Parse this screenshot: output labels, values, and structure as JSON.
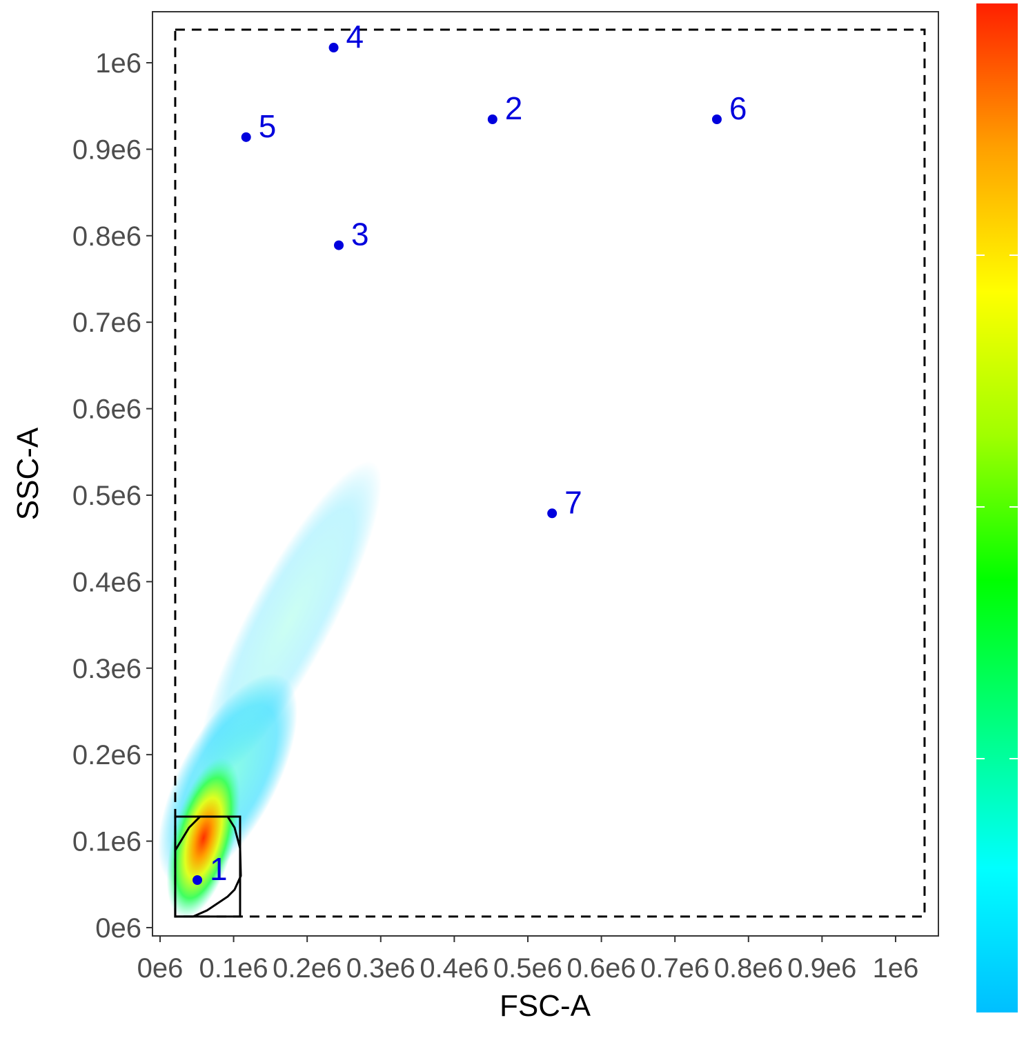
{
  "chart_data": {
    "type": "scatter",
    "x_label": "FSC-A",
    "y_label": "SSC-A",
    "xlim": [
      -10300,
      1058200
    ],
    "ylim": [
      -9600,
      1059000
    ],
    "xticks": [
      {
        "value": 0,
        "label": "0e6"
      },
      {
        "value": 100000,
        "label": "0.1e6"
      },
      {
        "value": 200000,
        "label": "0.2e6"
      },
      {
        "value": 300000,
        "label": "0.3e6"
      },
      {
        "value": 400000,
        "label": "0.4e6"
      },
      {
        "value": 500000,
        "label": "0.5e6"
      },
      {
        "value": 600000,
        "label": "0.6e6"
      },
      {
        "value": 700000,
        "label": "0.7e6"
      },
      {
        "value": 800000,
        "label": "0.8e6"
      },
      {
        "value": 900000,
        "label": "0.9e6"
      },
      {
        "value": 1000000,
        "label": "1e6"
      }
    ],
    "yticks": [
      {
        "value": 0,
        "label": "0e6"
      },
      {
        "value": 100000,
        "label": "0.1e6"
      },
      {
        "value": 200000,
        "label": "0.2e6"
      },
      {
        "value": 300000,
        "label": "0.3e6"
      },
      {
        "value": 400000,
        "label": "0.4e6"
      },
      {
        "value": 500000,
        "label": "0.5e6"
      },
      {
        "value": 600000,
        "label": "0.6e6"
      },
      {
        "value": 700000,
        "label": "0.7e6"
      },
      {
        "value": 800000,
        "label": "0.8e6"
      },
      {
        "value": 900000,
        "label": "0.9e6"
      },
      {
        "value": 1000000,
        "label": "1e6"
      }
    ],
    "point_color": "#0000dd",
    "points": [
      {
        "label": "1",
        "x": 50700,
        "y": 55000
      },
      {
        "label": "2",
        "x": 452000,
        "y": 934600
      },
      {
        "label": "3",
        "x": 243000,
        "y": 789000
      },
      {
        "label": "4",
        "x": 236000,
        "y": 1017500
      },
      {
        "label": "5",
        "x": 117000,
        "y": 914000
      },
      {
        "label": "6",
        "x": 757000,
        "y": 934600
      },
      {
        "label": "7",
        "x": 533000,
        "y": 479000
      }
    ],
    "gates": [
      {
        "style": "dashed",
        "x": [
          20600,
          1039400,
          1039400,
          20600
        ],
        "y": [
          1038300,
          1038300,
          12800,
          12800
        ]
      },
      {
        "style": "solid",
        "x": [
          20600,
          108800,
          108800,
          20600
        ],
        "y": [
          128400,
          128400,
          12800,
          12800
        ]
      },
      {
        "style": "solid",
        "x": [
          20600,
          39400,
          54400,
          91900,
          101300,
          108800,
          109800,
          101300,
          91900,
          63800,
          45000,
          20600
        ],
        "y": [
          89300,
          115600,
          128400,
          128400,
          115600,
          91700,
          59800,
          43900,
          35900,
          19900,
          12800,
          12800
        ]
      }
    ],
    "colorbar": {
      "colors": [
        "#ff2000",
        "#ffa000",
        "#ffff00",
        "#a0ff00",
        "#00ff00",
        "#00ff80",
        "#00ffff",
        "#00bfff"
      ]
    }
  }
}
